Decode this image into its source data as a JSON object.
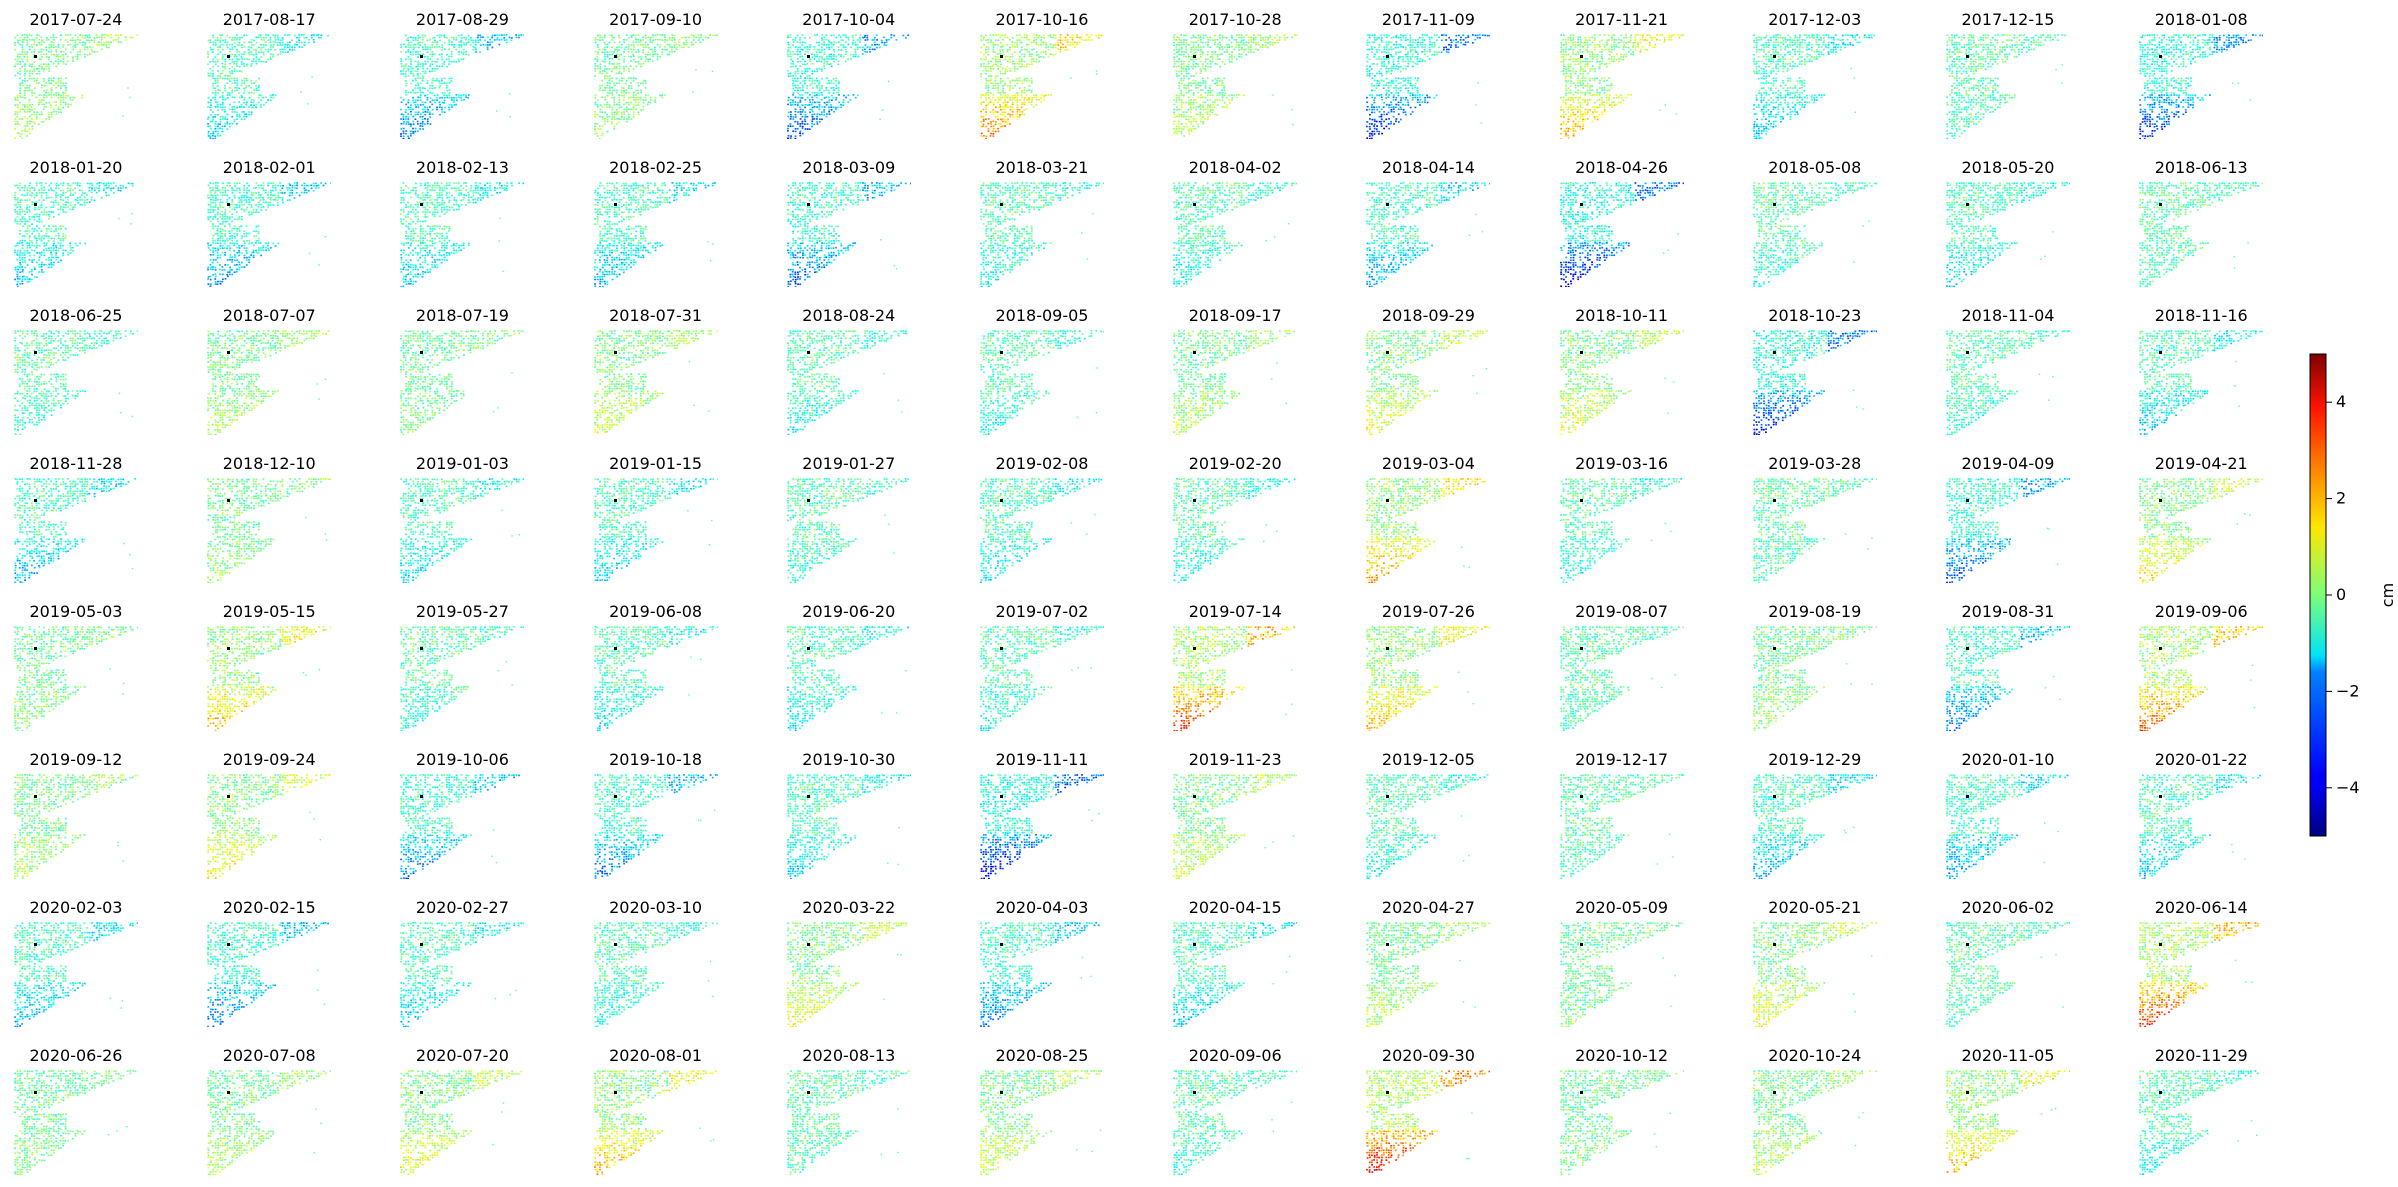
{
  "chart_data": {
    "type": "heatmap",
    "colormap": "jet",
    "colorbar": {
      "label": "cm",
      "vmin": -5,
      "vmax": 5,
      "ticks": [
        -4,
        -2,
        0,
        2,
        4
      ]
    },
    "grid": {
      "rows": 8,
      "columns": 12
    },
    "panels": [
      {
        "date": "2017-07-24",
        "mean": 0.5
      },
      {
        "date": "2017-08-17",
        "mean": -0.8
      },
      {
        "date": "2017-08-29",
        "mean": -1.6
      },
      {
        "date": "2017-09-10",
        "mean": 0.4
      },
      {
        "date": "2017-10-04",
        "mean": -2.0
      },
      {
        "date": "2017-10-16",
        "mean": 2.0
      },
      {
        "date": "2017-10-28",
        "mean": 0.6
      },
      {
        "date": "2017-11-09",
        "mean": -2.4
      },
      {
        "date": "2017-11-21",
        "mean": 1.6
      },
      {
        "date": "2017-12-03",
        "mean": -1.0
      },
      {
        "date": "2017-12-15",
        "mean": -0.2
      },
      {
        "date": "2018-01-08",
        "mean": -2.2
      },
      {
        "date": "2018-01-20",
        "mean": -1.0
      },
      {
        "date": "2018-02-01",
        "mean": -1.4
      },
      {
        "date": "2018-02-13",
        "mean": -1.0
      },
      {
        "date": "2018-02-25",
        "mean": -1.2
      },
      {
        "date": "2018-03-09",
        "mean": -1.8
      },
      {
        "date": "2018-03-21",
        "mean": -0.6
      },
      {
        "date": "2018-04-02",
        "mean": -0.6
      },
      {
        "date": "2018-04-14",
        "mean": -1.4
      },
      {
        "date": "2018-04-26",
        "mean": -2.6
      },
      {
        "date": "2018-05-08",
        "mean": -0.4
      },
      {
        "date": "2018-05-20",
        "mean": -0.8
      },
      {
        "date": "2018-06-13",
        "mean": -0.2
      },
      {
        "date": "2018-06-25",
        "mean": -0.4
      },
      {
        "date": "2018-07-07",
        "mean": 0.6
      },
      {
        "date": "2018-07-19",
        "mean": 0.2
      },
      {
        "date": "2018-07-31",
        "mean": 0.8
      },
      {
        "date": "2018-08-24",
        "mean": -0.6
      },
      {
        "date": "2018-09-05",
        "mean": -0.6
      },
      {
        "date": "2018-09-17",
        "mean": 0.6
      },
      {
        "date": "2018-09-29",
        "mean": 1.0
      },
      {
        "date": "2018-10-11",
        "mean": 1.0
      },
      {
        "date": "2018-10-23",
        "mean": -2.4
      },
      {
        "date": "2018-11-04",
        "mean": -0.4
      },
      {
        "date": "2018-11-16",
        "mean": -1.0
      },
      {
        "date": "2018-11-28",
        "mean": -1.2
      },
      {
        "date": "2018-12-10",
        "mean": 0.4
      },
      {
        "date": "2019-01-03",
        "mean": -0.8
      },
      {
        "date": "2019-01-15",
        "mean": -1.0
      },
      {
        "date": "2019-01-27",
        "mean": -0.4
      },
      {
        "date": "2019-02-08",
        "mean": -0.8
      },
      {
        "date": "2019-02-20",
        "mean": -0.6
      },
      {
        "date": "2019-03-04",
        "mean": 1.8
      },
      {
        "date": "2019-03-16",
        "mean": -0.6
      },
      {
        "date": "2019-03-28",
        "mean": -0.2
      },
      {
        "date": "2019-04-09",
        "mean": -2.0
      },
      {
        "date": "2019-04-21",
        "mean": 1.2
      },
      {
        "date": "2019-05-03",
        "mean": 0.4
      },
      {
        "date": "2019-05-15",
        "mean": 1.6
      },
      {
        "date": "2019-05-27",
        "mean": -0.4
      },
      {
        "date": "2019-06-08",
        "mean": -0.8
      },
      {
        "date": "2019-06-20",
        "mean": -0.8
      },
      {
        "date": "2019-07-02",
        "mean": -0.6
      },
      {
        "date": "2019-07-14",
        "mean": 2.6
      },
      {
        "date": "2019-07-26",
        "mean": 1.6
      },
      {
        "date": "2019-08-07",
        "mean": -0.2
      },
      {
        "date": "2019-08-19",
        "mean": 0.4
      },
      {
        "date": "2019-08-31",
        "mean": -1.6
      },
      {
        "date": "2019-09-06",
        "mean": 2.2
      },
      {
        "date": "2019-09-12",
        "mean": 0.6
      },
      {
        "date": "2019-09-24",
        "mean": 1.2
      },
      {
        "date": "2019-10-06",
        "mean": -1.6
      },
      {
        "date": "2019-10-18",
        "mean": -1.6
      },
      {
        "date": "2019-10-30",
        "mean": -1.0
      },
      {
        "date": "2019-11-11",
        "mean": -2.6
      },
      {
        "date": "2019-11-23",
        "mean": 0.8
      },
      {
        "date": "2019-12-05",
        "mean": -0.6
      },
      {
        "date": "2019-12-17",
        "mean": -0.2
      },
      {
        "date": "2019-12-29",
        "mean": -1.2
      },
      {
        "date": "2020-01-10",
        "mean": -1.4
      },
      {
        "date": "2020-01-22",
        "mean": -1.0
      },
      {
        "date": "2020-02-03",
        "mean": -1.2
      },
      {
        "date": "2020-02-15",
        "mean": -1.6
      },
      {
        "date": "2020-02-27",
        "mean": -1.0
      },
      {
        "date": "2020-03-10",
        "mean": -0.6
      },
      {
        "date": "2020-03-22",
        "mean": 1.0
      },
      {
        "date": "2020-04-03",
        "mean": -1.6
      },
      {
        "date": "2020-04-15",
        "mean": -1.0
      },
      {
        "date": "2020-04-27",
        "mean": 0.6
      },
      {
        "date": "2020-05-09",
        "mean": 0.2
      },
      {
        "date": "2020-05-21",
        "mean": 1.0
      },
      {
        "date": "2020-06-02",
        "mean": -0.2
      },
      {
        "date": "2020-06-14",
        "mean": 2.6
      },
      {
        "date": "2020-06-26",
        "mean": 0.2
      },
      {
        "date": "2020-07-08",
        "mean": 0.6
      },
      {
        "date": "2020-07-20",
        "mean": 1.0
      },
      {
        "date": "2020-08-01",
        "mean": 1.6
      },
      {
        "date": "2020-08-13",
        "mean": -0.2
      },
      {
        "date": "2020-08-25",
        "mean": 0.8
      },
      {
        "date": "2020-09-06",
        "mean": -0.4
      },
      {
        "date": "2020-09-30",
        "mean": 3.0
      },
      {
        "date": "2020-10-12",
        "mean": 0.2
      },
      {
        "date": "2020-10-24",
        "mean": 0.6
      },
      {
        "date": "2020-11-05",
        "mean": 1.6
      },
      {
        "date": "2020-11-29",
        "mean": -0.6
      }
    ]
  }
}
